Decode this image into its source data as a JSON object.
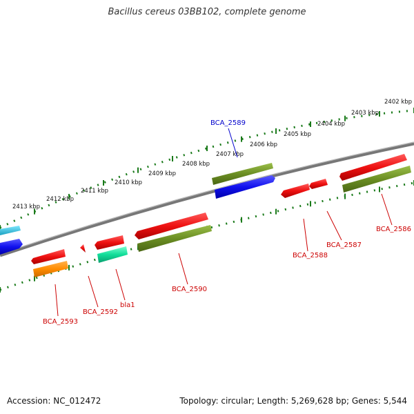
{
  "title": "Bacillus cereus 03BB102, complete genome",
  "accession": "Accession: NC_012472",
  "topology": "Topology: circular; Length: 5,269,628 bp; Genes: 5,544",
  "kbp_labels": [
    "2402 kbp",
    "2403 kbp",
    "2404 kbp",
    "2405 kbp",
    "2406 kbp",
    "2407 kbp",
    "2408 kbp",
    "2409 kbp",
    "2410 kbp",
    "2411 kbp",
    "2412 kbp",
    "2413 kbp"
  ],
  "genes": {
    "g2586": "BCA_2586",
    "g2587": "BCA_2587",
    "g2588": "BCA_2588",
    "g2589": "BCA_2589",
    "g2590": "BCA_2590",
    "bla1": "bla1",
    "g2592": "BCA_2592",
    "g2593": "BCA_2593"
  },
  "colors": {
    "red": "#ee1111",
    "green": "#6b8e23",
    "blue": "#1111ee",
    "orange": "#ff8c00",
    "teal": "#11dd99",
    "backbone": "#777777",
    "tick": "#1a7a1a",
    "label_red": "#cc0000",
    "label_blue": "#0000cc"
  }
}
